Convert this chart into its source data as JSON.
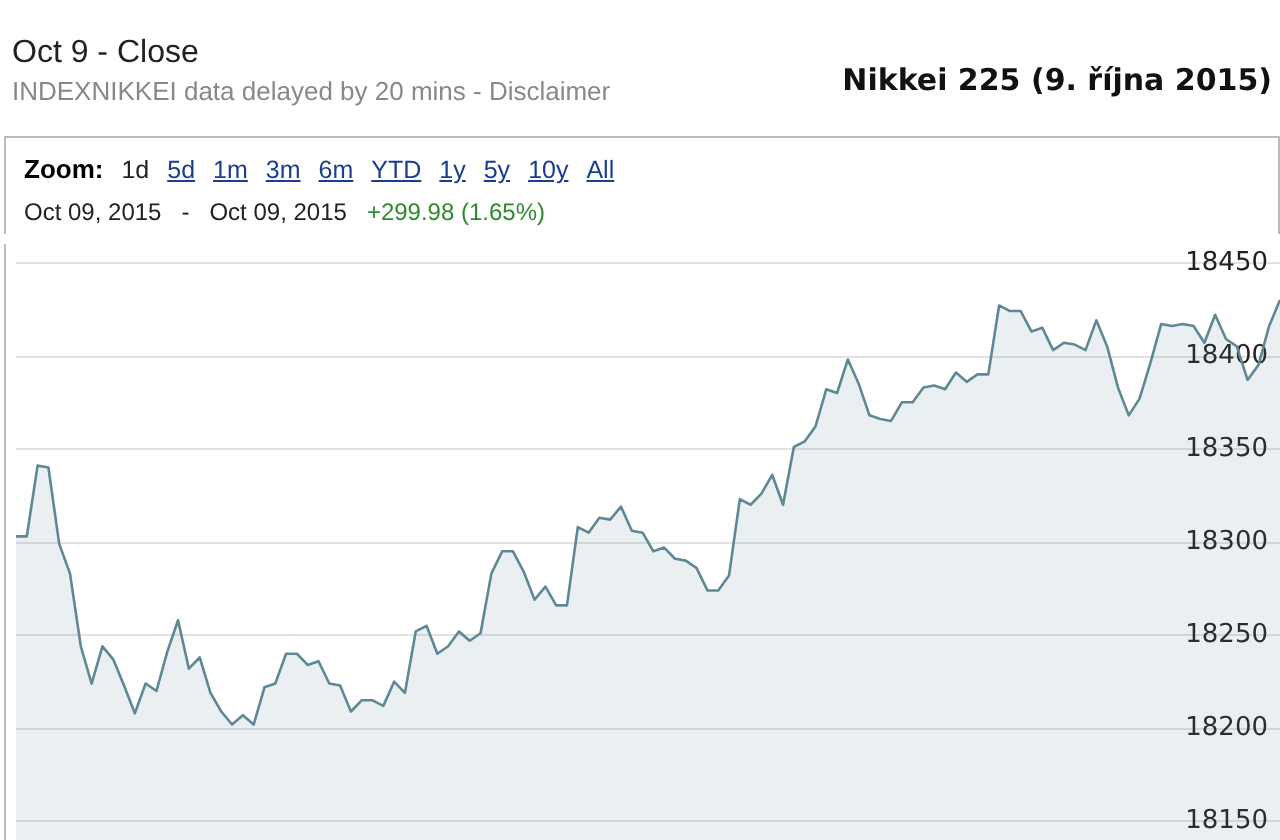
{
  "chart_data": {
    "type": "area",
    "title": "Nikkei 225 (9. října 2015)",
    "subtitle": "Oct 9 - Close",
    "annotations": [
      "INDEXNIKKEI data delayed by 20 mins - Disclaimer",
      "Zoom:",
      "1d",
      "5d",
      "1m",
      "3m",
      "6m",
      "YTD",
      "1y",
      "5y",
      "10y",
      "All",
      "Oct 09, 2015",
      "-",
      "Oct 09, 2015",
      "+299.98 (1.65%)"
    ],
    "categories": [
      null,
      null,
      null,
      null,
      null,
      null,
      null,
      null,
      null,
      null,
      null,
      null,
      null,
      null,
      null,
      null,
      null,
      null,
      null,
      null,
      null,
      null,
      null,
      null,
      null,
      null,
      null,
      null,
      null,
      null,
      null,
      null,
      null,
      null,
      null,
      null,
      null,
      null,
      null,
      null,
      null,
      null,
      null,
      null,
      null,
      null,
      null,
      null,
      null,
      null,
      null,
      null,
      null,
      null,
      null,
      null,
      null,
      null,
      null,
      null,
      null,
      null,
      null,
      null,
      null,
      null,
      null,
      null,
      null,
      null,
      null,
      null,
      null,
      null,
      null,
      null,
      null,
      null,
      null,
      null,
      null,
      null,
      null,
      null,
      null,
      null,
      null,
      null,
      null,
      null,
      null,
      null,
      null,
      null,
      null,
      null,
      null,
      null,
      null,
      null,
      null,
      null,
      null,
      null,
      null,
      null,
      null,
      null,
      null,
      null,
      null,
      null,
      null,
      null,
      null,
      null,
      null,
      null
    ],
    "series": [
      {
        "color": "#5f8896",
        "values": [
          18303,
          18303,
          18341,
          18340,
          18299,
          18283,
          18244,
          18224,
          18244,
          18237,
          18223,
          18208,
          18224,
          18220,
          18241,
          18258,
          18232,
          18238,
          18219,
          18209,
          18202,
          18207,
          18202,
          18222,
          18224,
          18240,
          18240,
          18234,
          18236,
          18224,
          18223,
          18209,
          18215,
          18215,
          18212,
          18225,
          18219,
          18252,
          18255,
          18240,
          18244,
          18252,
          18247,
          18251,
          18283,
          18295,
          18295,
          18284,
          18269,
          18276,
          18266,
          18266,
          18308,
          18305,
          18313,
          18312,
          18319,
          18306,
          18305,
          18295,
          18297,
          18291,
          18290,
          18286,
          18274,
          18274,
          18282,
          18323,
          18320,
          18326,
          18336,
          18320,
          18351,
          18354,
          18362,
          18382,
          18380,
          18398,
          18385,
          18368,
          18366,
          18365,
          18375,
          18375,
          18383,
          18384,
          18382,
          18391,
          18386,
          18390,
          18390,
          18427,
          18424,
          18424,
          18413,
          18415,
          18403,
          18407,
          18406,
          18403,
          18419,
          18405,
          18383,
          18368,
          18377,
          18396,
          18417,
          18416,
          18417,
          18416,
          18407,
          18422,
          18409,
          18405,
          18387,
          18395,
          18416,
          18430
        ]
      }
    ],
    "ylim": [
      18140,
      18460
    ],
    "yticks": [
      18150,
      18200,
      18250,
      18300,
      18350,
      18400,
      18450
    ],
    "grid": "y",
    "tick_labels": "y",
    "line_style": "solid"
  }
}
